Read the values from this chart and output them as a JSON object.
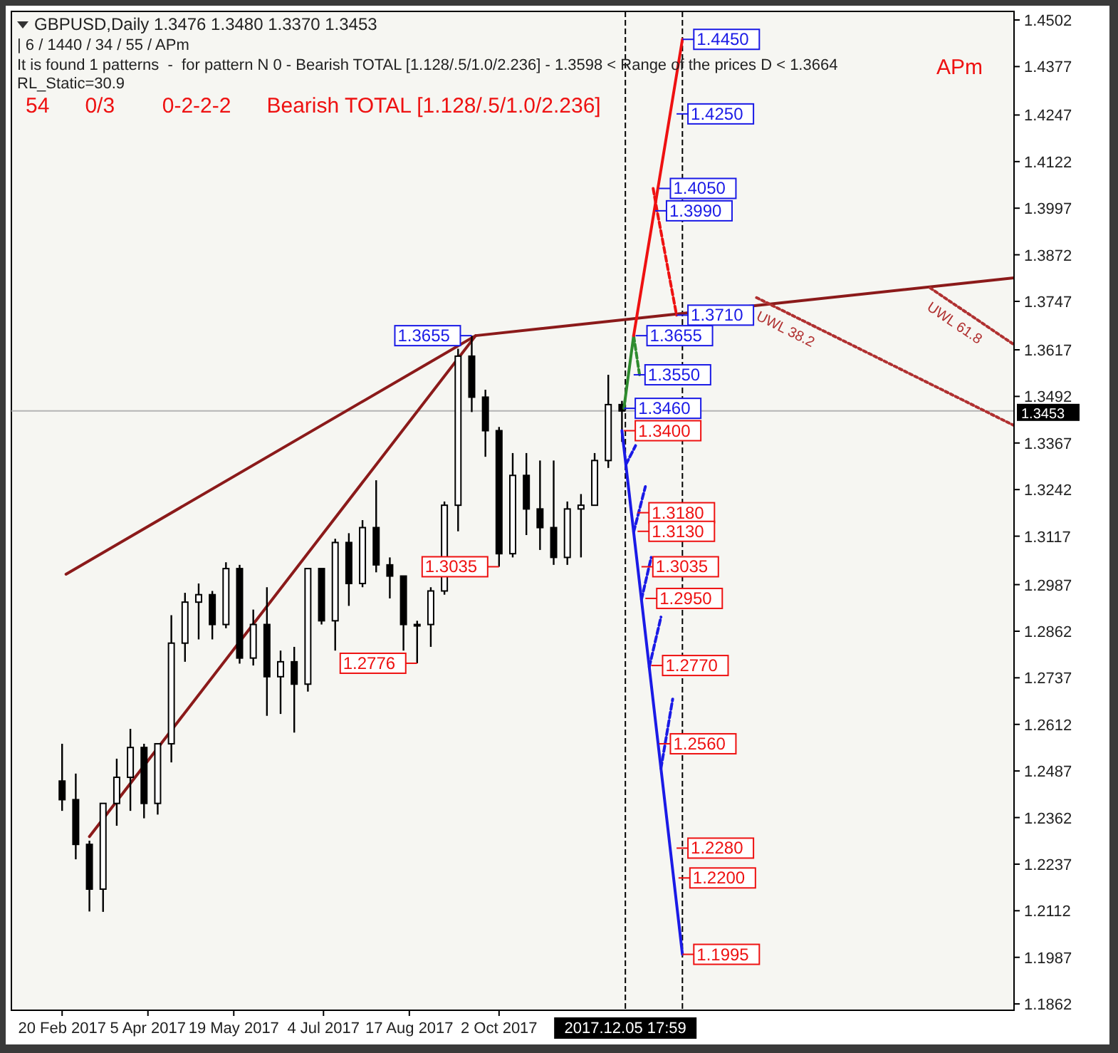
{
  "chart_data": {
    "type": "candlestick",
    "title": "GBPUSD,Daily  1.3476 1.3480 1.3370 1.3453",
    "subtitle": "| 6 / 1440 / 34 / 55 / APm",
    "x": [
      "2017-02-20",
      "2017-02-27",
      "2017-03-06",
      "2017-03-13",
      "2017-03-20",
      "2017-03-27",
      "2017-04-03",
      "2017-04-10",
      "2017-04-17",
      "2017-04-24",
      "2017-05-01",
      "2017-05-08",
      "2017-05-15",
      "2017-05-22",
      "2017-05-29",
      "2017-06-05",
      "2017-06-12",
      "2017-06-19",
      "2017-06-26",
      "2017-07-03",
      "2017-07-10",
      "2017-07-17",
      "2017-07-24",
      "2017-07-31",
      "2017-08-07",
      "2017-08-14",
      "2017-08-21",
      "2017-08-28",
      "2017-09-04",
      "2017-09-11",
      "2017-09-18",
      "2017-09-25",
      "2017-10-02",
      "2017-10-09",
      "2017-10-16",
      "2017-10-23",
      "2017-10-30",
      "2017-11-06",
      "2017-11-13",
      "2017-11-20",
      "2017-11-27",
      "2017-12-04"
    ],
    "ohlc": [
      [
        1.246,
        1.256,
        1.238,
        1.241
      ],
      [
        1.241,
        1.248,
        1.225,
        1.229
      ],
      [
        1.229,
        1.23,
        1.211,
        1.217
      ],
      [
        1.217,
        1.24,
        1.2109,
        1.24
      ],
      [
        1.24,
        1.252,
        1.234,
        1.247
      ],
      [
        1.247,
        1.26,
        1.238,
        1.255
      ],
      [
        1.255,
        1.256,
        1.236,
        1.24
      ],
      [
        1.24,
        1.256,
        1.237,
        1.256
      ],
      [
        1.256,
        1.2905,
        1.251,
        1.283
      ],
      [
        1.283,
        1.2965,
        1.278,
        1.294
      ],
      [
        1.294,
        1.299,
        1.284,
        1.296
      ],
      [
        1.296,
        1.297,
        1.284,
        1.288
      ],
      [
        1.288,
        1.3047,
        1.287,
        1.303
      ],
      [
        1.303,
        1.304,
        1.2775,
        1.279
      ],
      [
        1.279,
        1.292,
        1.277,
        1.288
      ],
      [
        1.288,
        1.298,
        1.2635,
        1.274
      ],
      [
        1.274,
        1.281,
        1.264,
        1.278
      ],
      [
        1.278,
        1.282,
        1.259,
        1.272
      ],
      [
        1.272,
        1.303,
        1.27,
        1.303
      ],
      [
        1.303,
        1.303,
        1.288,
        1.289
      ],
      [
        1.289,
        1.311,
        1.281,
        1.31
      ],
      [
        1.31,
        1.3125,
        1.293,
        1.299
      ],
      [
        1.299,
        1.316,
        1.298,
        1.314
      ],
      [
        1.314,
        1.3267,
        1.302,
        1.304
      ],
      [
        1.304,
        1.306,
        1.295,
        1.301
      ],
      [
        1.301,
        1.301,
        1.281,
        1.288
      ],
      [
        1.288,
        1.289,
        1.2776,
        1.288
      ],
      [
        1.288,
        1.298,
        1.282,
        1.297
      ],
      [
        1.297,
        1.321,
        1.296,
        1.32
      ],
      [
        1.32,
        1.362,
        1.313,
        1.36
      ],
      [
        1.36,
        1.3655,
        1.345,
        1.349
      ],
      [
        1.349,
        1.351,
        1.333,
        1.34
      ],
      [
        1.34,
        1.341,
        1.3035,
        1.307
      ],
      [
        1.307,
        1.334,
        1.306,
        1.328
      ],
      [
        1.328,
        1.334,
        1.312,
        1.319
      ],
      [
        1.319,
        1.332,
        1.308,
        1.314
      ],
      [
        1.314,
        1.332,
        1.304,
        1.306
      ],
      [
        1.306,
        1.321,
        1.304,
        1.319
      ],
      [
        1.319,
        1.323,
        1.306,
        1.32
      ],
      [
        1.32,
        1.334,
        1.32,
        1.332
      ],
      [
        1.332,
        1.355,
        1.33,
        1.347
      ],
      [
        1.347,
        1.348,
        1.337,
        1.3453
      ]
    ],
    "series": [
      {
        "type": "line",
        "color": "#2e8b2e",
        "line_style": "solid",
        "x": [
          "2017-12-05",
          "2017-12-10"
        ],
        "values": [
          1.346,
          1.3655
        ]
      },
      {
        "type": "line",
        "color": "#2e8b2e",
        "line_style": "dashed",
        "x": [
          "2017-12-10",
          "2017-12-13"
        ],
        "values": [
          1.3655,
          1.355
        ]
      },
      {
        "type": "line",
        "color": "#ee1111",
        "line_style": "solid",
        "x": [
          "2017-12-10",
          "2018-01-04"
        ],
        "values": [
          1.3655,
          1.445
        ]
      },
      {
        "type": "line",
        "color": "#ee1111",
        "line_style": "dashed",
        "x": [
          "2017-12-20",
          "2017-12-22",
          "2018-01-01"
        ],
        "values": [
          1.405,
          1.399,
          1.371
        ]
      },
      {
        "type": "line",
        "color": "#1a1ae6",
        "line_style": "solid",
        "x": [
          "2017-12-04",
          "2018-01-04"
        ],
        "values": [
          1.34,
          1.1995
        ]
      },
      {
        "type": "line",
        "color": "#1a1ae6",
        "line_style": "dashed",
        "x": [
          "2017-12-06",
          "2017-12-11"
        ],
        "values": [
          1.3309,
          1.336
        ]
      },
      {
        "type": "line",
        "color": "#1a1ae6",
        "line_style": "dashed",
        "x": [
          "2017-12-10",
          "2017-12-16"
        ],
        "values": [
          1.3128,
          1.325
        ]
      },
      {
        "type": "line",
        "color": "#1a1ae6",
        "line_style": "dashed",
        "x": [
          "2017-12-14",
          "2017-12-19"
        ],
        "values": [
          1.2947,
          1.306
        ]
      },
      {
        "type": "line",
        "color": "#1a1ae6",
        "line_style": "dashed",
        "x": [
          "2017-12-18",
          "2017-12-24"
        ],
        "values": [
          1.2766,
          1.29
        ]
      },
      {
        "type": "line",
        "color": "#1a1ae6",
        "line_style": "dashed",
        "x": [
          "2017-12-24",
          "2017-12-30"
        ],
        "values": [
          1.2494,
          1.268
        ]
      },
      {
        "type": "line",
        "color": "#8b1a1a",
        "line_style": "solid",
        "x": [
          "2017-03-06",
          "2017-09-20"
        ],
        "values": [
          1.2311,
          1.3655
        ]
      },
      {
        "type": "line",
        "color": "#8b1a1a",
        "line_style": "solid",
        "x": [
          "2017-02-22",
          "2017-09-20",
          "2018-06-23"
        ],
        "values": [
          1.3015,
          1.3655,
          1.381
        ]
      },
      {
        "type": "line",
        "name": "UWL 38.2",
        "color": "#b03030",
        "line_style": "dotted",
        "x": [
          "2018-02-11",
          "2018-06-23"
        ],
        "values": [
          1.3757,
          1.3414
        ]
      },
      {
        "type": "line",
        "name": "UWL 61.8",
        "color": "#b03030",
        "line_style": "dotted",
        "x": [
          "2018-05-11",
          "2018-06-23"
        ],
        "values": [
          1.3783,
          1.3631
        ]
      }
    ],
    "annotations": [
      "It is found 1 patterns  -  for pattern N 0 - Bearish TOTAL [1.128/.5/1.0/2.236] - 1.3598 < Range of the prices D < 1.3664",
      "RL_Static=30.9",
      "54      0/3        0-2-2-2      Bearish TOTAL [1.128/.5/1.0/2.236]",
      "APm",
      {
        "text": "1.3655",
        "x": "2017-09-18",
        "y": 1.3655
      },
      {
        "text": "1.3035",
        "x": "2017-10-02",
        "y": 1.3035
      },
      {
        "text": "1.2776",
        "x": "2017-08-21",
        "y": 1.2776
      },
      {
        "text": "1.4450",
        "x": "2018-01-04",
        "y": 1.445
      },
      {
        "text": "1.4250",
        "x": "2018-01-01",
        "y": 1.425
      },
      {
        "text": "1.4050",
        "x": "2017-12-23",
        "y": 1.405
      },
      {
        "text": "1.3990",
        "x": "2017-12-21",
        "y": 1.399
      },
      {
        "text": "1.3710",
        "x": "2018-01-01",
        "y": 1.371
      },
      {
        "text": "1.3655",
        "x": "2017-12-11",
        "y": 1.3655
      },
      {
        "text": "1.3550",
        "x": "2017-12-10",
        "y": 1.355
      },
      {
        "text": "1.3460",
        "x": "2017-12-05",
        "y": 1.346
      },
      {
        "text": "1.3400",
        "x": "2017-12-05",
        "y": 1.34
      },
      {
        "text": "1.3180",
        "x": "2017-12-12",
        "y": 1.318
      },
      {
        "text": "1.3130",
        "x": "2017-12-12",
        "y": 1.313
      },
      {
        "text": "1.3035",
        "x": "2017-12-14",
        "y": 1.3035
      },
      {
        "text": "1.2950",
        "x": "2017-12-16",
        "y": 1.295
      },
      {
        "text": "1.2770",
        "x": "2017-12-19",
        "y": 1.277
      },
      {
        "text": "1.2560",
        "x": "2017-12-23",
        "y": 1.256
      },
      {
        "text": "1.2280",
        "x": "2018-01-01",
        "y": 1.228
      },
      {
        "text": "1.2200",
        "x": "2018-01-02",
        "y": 1.22
      },
      {
        "text": "1.1995",
        "x": "2018-01-04",
        "y": 1.1995
      }
    ],
    "ref_lines": [
      {
        "axis": "y",
        "value": 1.3453,
        "label": "1.3453",
        "color": "#b4b4b4",
        "line_style": "solid"
      },
      {
        "axis": "x",
        "value": "2017-12-05T17:59",
        "label": "2017.12.05 17:59",
        "color": "#000000",
        "line_style": "dashed"
      },
      {
        "axis": "x",
        "value": "2018-01-04",
        "color": "#000000",
        "line_style": "dashed"
      }
    ],
    "xlim": [
      "2017-01-25",
      "2018-06-23"
    ],
    "xticks": [
      {
        "value": "2017-02-20",
        "label": "20 Feb 2017"
      },
      {
        "value": "2017-04-05",
        "label": "5 Apr 2017"
      },
      {
        "value": "2017-05-19",
        "label": "19 May 2017"
      },
      {
        "value": "2017-07-04",
        "label": "4 Jul 2017"
      },
      {
        "value": "2017-08-17",
        "label": "17 Aug 2017"
      },
      {
        "value": "2017-10-02",
        "label": "2 Oct 2017"
      }
    ],
    "ylim": [
      1.1845,
      1.4525
    ],
    "yticks": [
      1.4502,
      1.4377,
      1.4247,
      1.4122,
      1.3997,
      1.3872,
      1.3747,
      1.3617,
      1.3492,
      1.3367,
      1.3242,
      1.3117,
      1.2987,
      1.2862,
      1.2737,
      1.2612,
      1.2487,
      1.2362,
      1.2237,
      1.2112,
      1.1987,
      1.1862
    ],
    "grid": false
  }
}
